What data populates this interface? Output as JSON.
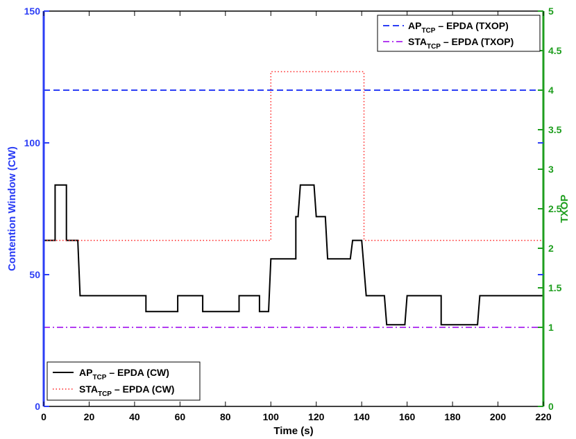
{
  "chart_data": {
    "type": "line",
    "xlabel": "Time (s)",
    "ylabel_left": "Contention Window (CW)",
    "ylabel_right": "TXOP",
    "xlim": [
      0,
      220
    ],
    "ylim_left": [
      0,
      150
    ],
    "ylim_right": [
      0,
      5
    ],
    "x_ticks": [
      "0",
      "20",
      "40",
      "60",
      "80",
      "100",
      "120",
      "140",
      "160",
      "180",
      "200",
      "220"
    ],
    "y_left_ticks": [
      "0",
      "50",
      "100",
      "150"
    ],
    "y_right_ticks": [
      "0",
      "1",
      "1.5",
      "2",
      "2.5",
      "3",
      "3.5",
      "4",
      "4.5",
      "5"
    ],
    "colors": {
      "left_axis": "#2b3df5",
      "right_axis": "#1e9e1e",
      "ap_cw": "#000000",
      "sta_cw": "#ff2020",
      "ap_txop": "#2b3df5",
      "sta_txop": "#b23cf0"
    },
    "legend_top": {
      "placement": "top-right",
      "entries": [
        {
          "prefix": "AP",
          "sub": "TCP",
          "suffix": " – EPDA (TXOP)"
        },
        {
          "prefix": "STA",
          "sub": "TCP",
          "suffix": " – EPDA (TXOP)"
        }
      ]
    },
    "legend_bottom": {
      "placement": "bottom-left",
      "entries": [
        {
          "prefix": "AP",
          "sub": "TCP",
          "suffix": " – EPDA (CW)"
        },
        {
          "prefix": "STA",
          "sub": "TCP",
          "suffix": " – EPDA (CW)"
        }
      ]
    },
    "series": [
      {
        "id": "ap_cw",
        "axis": "left",
        "style": "solid",
        "points": [
          [
            0,
            63
          ],
          [
            5,
            63
          ],
          [
            5,
            84
          ],
          [
            10,
            84
          ],
          [
            10,
            63
          ],
          [
            15,
            63
          ],
          [
            16,
            42
          ],
          [
            45,
            42
          ],
          [
            45,
            36
          ],
          [
            59,
            36
          ],
          [
            59,
            42
          ],
          [
            70,
            42
          ],
          [
            70,
            36
          ],
          [
            86,
            36
          ],
          [
            86,
            42
          ],
          [
            95,
            42
          ],
          [
            95,
            36
          ],
          [
            99,
            36
          ],
          [
            100,
            56
          ],
          [
            111,
            56
          ],
          [
            111,
            72
          ],
          [
            112,
            72
          ],
          [
            113,
            84
          ],
          [
            119,
            84
          ],
          [
            120,
            72
          ],
          [
            124,
            72
          ],
          [
            125,
            56
          ],
          [
            135,
            56
          ],
          [
            136,
            63
          ],
          [
            140,
            63
          ],
          [
            142,
            42
          ],
          [
            150,
            42
          ],
          [
            151,
            31
          ],
          [
            159,
            31
          ],
          [
            160,
            42
          ],
          [
            175,
            42
          ],
          [
            175,
            31
          ],
          [
            191,
            31
          ],
          [
            192,
            42
          ],
          [
            220,
            42
          ]
        ]
      },
      {
        "id": "sta_cw",
        "axis": "left",
        "style": "dotted",
        "points": [
          [
            0,
            63
          ],
          [
            100,
            63
          ],
          [
            100,
            127
          ],
          [
            141,
            127
          ],
          [
            141,
            63
          ],
          [
            220,
            63
          ]
        ]
      },
      {
        "id": "ap_txop",
        "axis": "right",
        "style": "dashed",
        "points": [
          [
            0,
            4
          ],
          [
            220,
            4
          ]
        ]
      },
      {
        "id": "sta_txop",
        "axis": "right",
        "style": "dashdot",
        "points": [
          [
            0,
            1
          ],
          [
            220,
            1
          ]
        ]
      }
    ]
  }
}
